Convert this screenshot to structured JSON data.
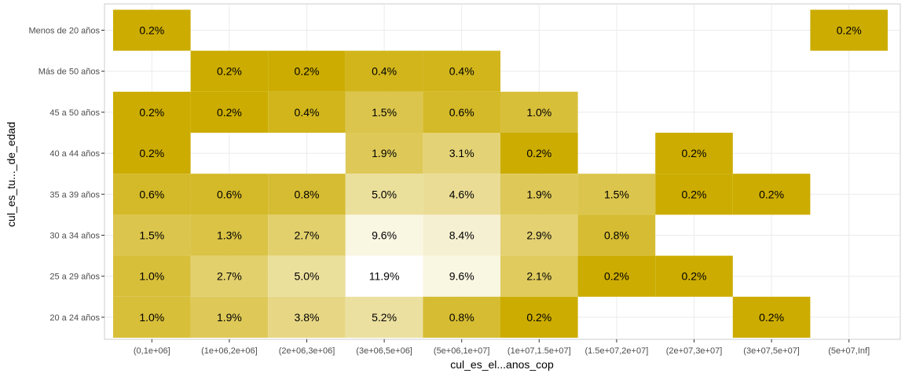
{
  "chart_data": {
    "type": "heatmap",
    "xlabel": "cul_es_el...anos_cop",
    "ylabel": "cul_es_tu..._de_edad",
    "x_categories": [
      "(0,1e+06]",
      "(1e+06,2e+06]",
      "(2e+06,3e+06]",
      "(3e+06,5e+06]",
      "(5e+06,1e+07]",
      "(1e+07,1.5e+07]",
      "(1.5e+07,2e+07]",
      "(2e+07,3e+07]",
      "(3e+07,5e+07]",
      "(5e+07,Inf]"
    ],
    "y_categories": [
      "20 a 24 años",
      "25 a 29 años",
      "30 a 34 años",
      "35 a 39 años",
      "40 a 44 años",
      "45 a 50 años",
      "Más de 50 años",
      "Menos de 20 años"
    ],
    "cells": [
      {
        "x": "(0,1e+06]",
        "y": "Menos de 20 años",
        "value": 0.2,
        "label": "0.2%"
      },
      {
        "x": "(5e+07,Inf]",
        "y": "Menos de 20 años",
        "value": 0.2,
        "label": "0.2%"
      },
      {
        "x": "(1e+06,2e+06]",
        "y": "Más de 50 años",
        "value": 0.2,
        "label": "0.2%"
      },
      {
        "x": "(2e+06,3e+06]",
        "y": "Más de 50 años",
        "value": 0.2,
        "label": "0.2%"
      },
      {
        "x": "(3e+06,5e+06]",
        "y": "Más de 50 años",
        "value": 0.4,
        "label": "0.4%"
      },
      {
        "x": "(5e+06,1e+07]",
        "y": "Más de 50 años",
        "value": 0.4,
        "label": "0.4%"
      },
      {
        "x": "(0,1e+06]",
        "y": "45 a 50 años",
        "value": 0.2,
        "label": "0.2%"
      },
      {
        "x": "(1e+06,2e+06]",
        "y": "45 a 50 años",
        "value": 0.2,
        "label": "0.2%"
      },
      {
        "x": "(2e+06,3e+06]",
        "y": "45 a 50 años",
        "value": 0.4,
        "label": "0.4%"
      },
      {
        "x": "(3e+06,5e+06]",
        "y": "45 a 50 años",
        "value": 1.5,
        "label": "1.5%"
      },
      {
        "x": "(5e+06,1e+07]",
        "y": "45 a 50 años",
        "value": 0.6,
        "label": "0.6%"
      },
      {
        "x": "(1e+07,1.5e+07]",
        "y": "45 a 50 años",
        "value": 1.0,
        "label": "1.0%"
      },
      {
        "x": "(0,1e+06]",
        "y": "40 a 44 años",
        "value": 0.2,
        "label": "0.2%"
      },
      {
        "x": "(3e+06,5e+06]",
        "y": "40 a 44 años",
        "value": 1.9,
        "label": "1.9%"
      },
      {
        "x": "(5e+06,1e+07]",
        "y": "40 a 44 años",
        "value": 3.1,
        "label": "3.1%"
      },
      {
        "x": "(1e+07,1.5e+07]",
        "y": "40 a 44 años",
        "value": 0.2,
        "label": "0.2%"
      },
      {
        "x": "(2e+07,3e+07]",
        "y": "40 a 44 años",
        "value": 0.2,
        "label": "0.2%"
      },
      {
        "x": "(0,1e+06]",
        "y": "35 a 39 años",
        "value": 0.6,
        "label": "0.6%"
      },
      {
        "x": "(1e+06,2e+06]",
        "y": "35 a 39 años",
        "value": 0.6,
        "label": "0.6%"
      },
      {
        "x": "(2e+06,3e+06]",
        "y": "35 a 39 años",
        "value": 0.8,
        "label": "0.8%"
      },
      {
        "x": "(3e+06,5e+06]",
        "y": "35 a 39 años",
        "value": 5.0,
        "label": "5.0%"
      },
      {
        "x": "(5e+06,1e+07]",
        "y": "35 a 39 años",
        "value": 4.6,
        "label": "4.6%"
      },
      {
        "x": "(1e+07,1.5e+07]",
        "y": "35 a 39 años",
        "value": 1.9,
        "label": "1.9%"
      },
      {
        "x": "(1.5e+07,2e+07]",
        "y": "35 a 39 años",
        "value": 1.5,
        "label": "1.5%"
      },
      {
        "x": "(2e+07,3e+07]",
        "y": "35 a 39 años",
        "value": 0.2,
        "label": "0.2%"
      },
      {
        "x": "(3e+07,5e+07]",
        "y": "35 a 39 años",
        "value": 0.2,
        "label": "0.2%"
      },
      {
        "x": "(0,1e+06]",
        "y": "30 a 34 años",
        "value": 1.5,
        "label": "1.5%"
      },
      {
        "x": "(1e+06,2e+06]",
        "y": "30 a 34 años",
        "value": 1.3,
        "label": "1.3%"
      },
      {
        "x": "(2e+06,3e+06]",
        "y": "30 a 34 años",
        "value": 2.7,
        "label": "2.7%"
      },
      {
        "x": "(3e+06,5e+06]",
        "y": "30 a 34 años",
        "value": 9.6,
        "label": "9.6%"
      },
      {
        "x": "(5e+06,1e+07]",
        "y": "30 a 34 años",
        "value": 8.4,
        "label": "8.4%"
      },
      {
        "x": "(1e+07,1.5e+07]",
        "y": "30 a 34 años",
        "value": 2.9,
        "label": "2.9%"
      },
      {
        "x": "(1.5e+07,2e+07]",
        "y": "30 a 34 años",
        "value": 0.8,
        "label": "0.8%"
      },
      {
        "x": "(0,1e+06]",
        "y": "25 a 29 años",
        "value": 1.0,
        "label": "1.0%"
      },
      {
        "x": "(1e+06,2e+06]",
        "y": "25 a 29 años",
        "value": 2.7,
        "label": "2.7%"
      },
      {
        "x": "(2e+06,3e+06]",
        "y": "25 a 29 años",
        "value": 5.0,
        "label": "5.0%"
      },
      {
        "x": "(3e+06,5e+06]",
        "y": "25 a 29 años",
        "value": 11.9,
        "label": "11.9%"
      },
      {
        "x": "(5e+06,1e+07]",
        "y": "25 a 29 años",
        "value": 9.6,
        "label": "9.6%"
      },
      {
        "x": "(1e+07,1.5e+07]",
        "y": "25 a 29 años",
        "value": 2.1,
        "label": "2.1%"
      },
      {
        "x": "(1.5e+07,2e+07]",
        "y": "25 a 29 años",
        "value": 0.2,
        "label": "0.2%"
      },
      {
        "x": "(2e+07,3e+07]",
        "y": "25 a 29 años",
        "value": 0.2,
        "label": "0.2%"
      },
      {
        "x": "(0,1e+06]",
        "y": "20 a 24 años",
        "value": 1.0,
        "label": "1.0%"
      },
      {
        "x": "(1e+06,2e+06]",
        "y": "20 a 24 años",
        "value": 1.9,
        "label": "1.9%"
      },
      {
        "x": "(2e+06,3e+06]",
        "y": "20 a 24 años",
        "value": 3.8,
        "label": "3.8%"
      },
      {
        "x": "(3e+06,5e+06]",
        "y": "20 a 24 años",
        "value": 5.2,
        "label": "5.2%"
      },
      {
        "x": "(5e+06,1e+07]",
        "y": "20 a 24 años",
        "value": 0.8,
        "label": "0.8%"
      },
      {
        "x": "(1e+07,1.5e+07]",
        "y": "20 a 24 años",
        "value": 0.2,
        "label": "0.2%"
      },
      {
        "x": "(3e+07,5e+07]",
        "y": "20 a 24 años",
        "value": 0.2,
        "label": "0.2%"
      }
    ],
    "color_low": "#CCAC00",
    "color_high": "#FFFFFF",
    "grid": true,
    "legend": "none"
  }
}
